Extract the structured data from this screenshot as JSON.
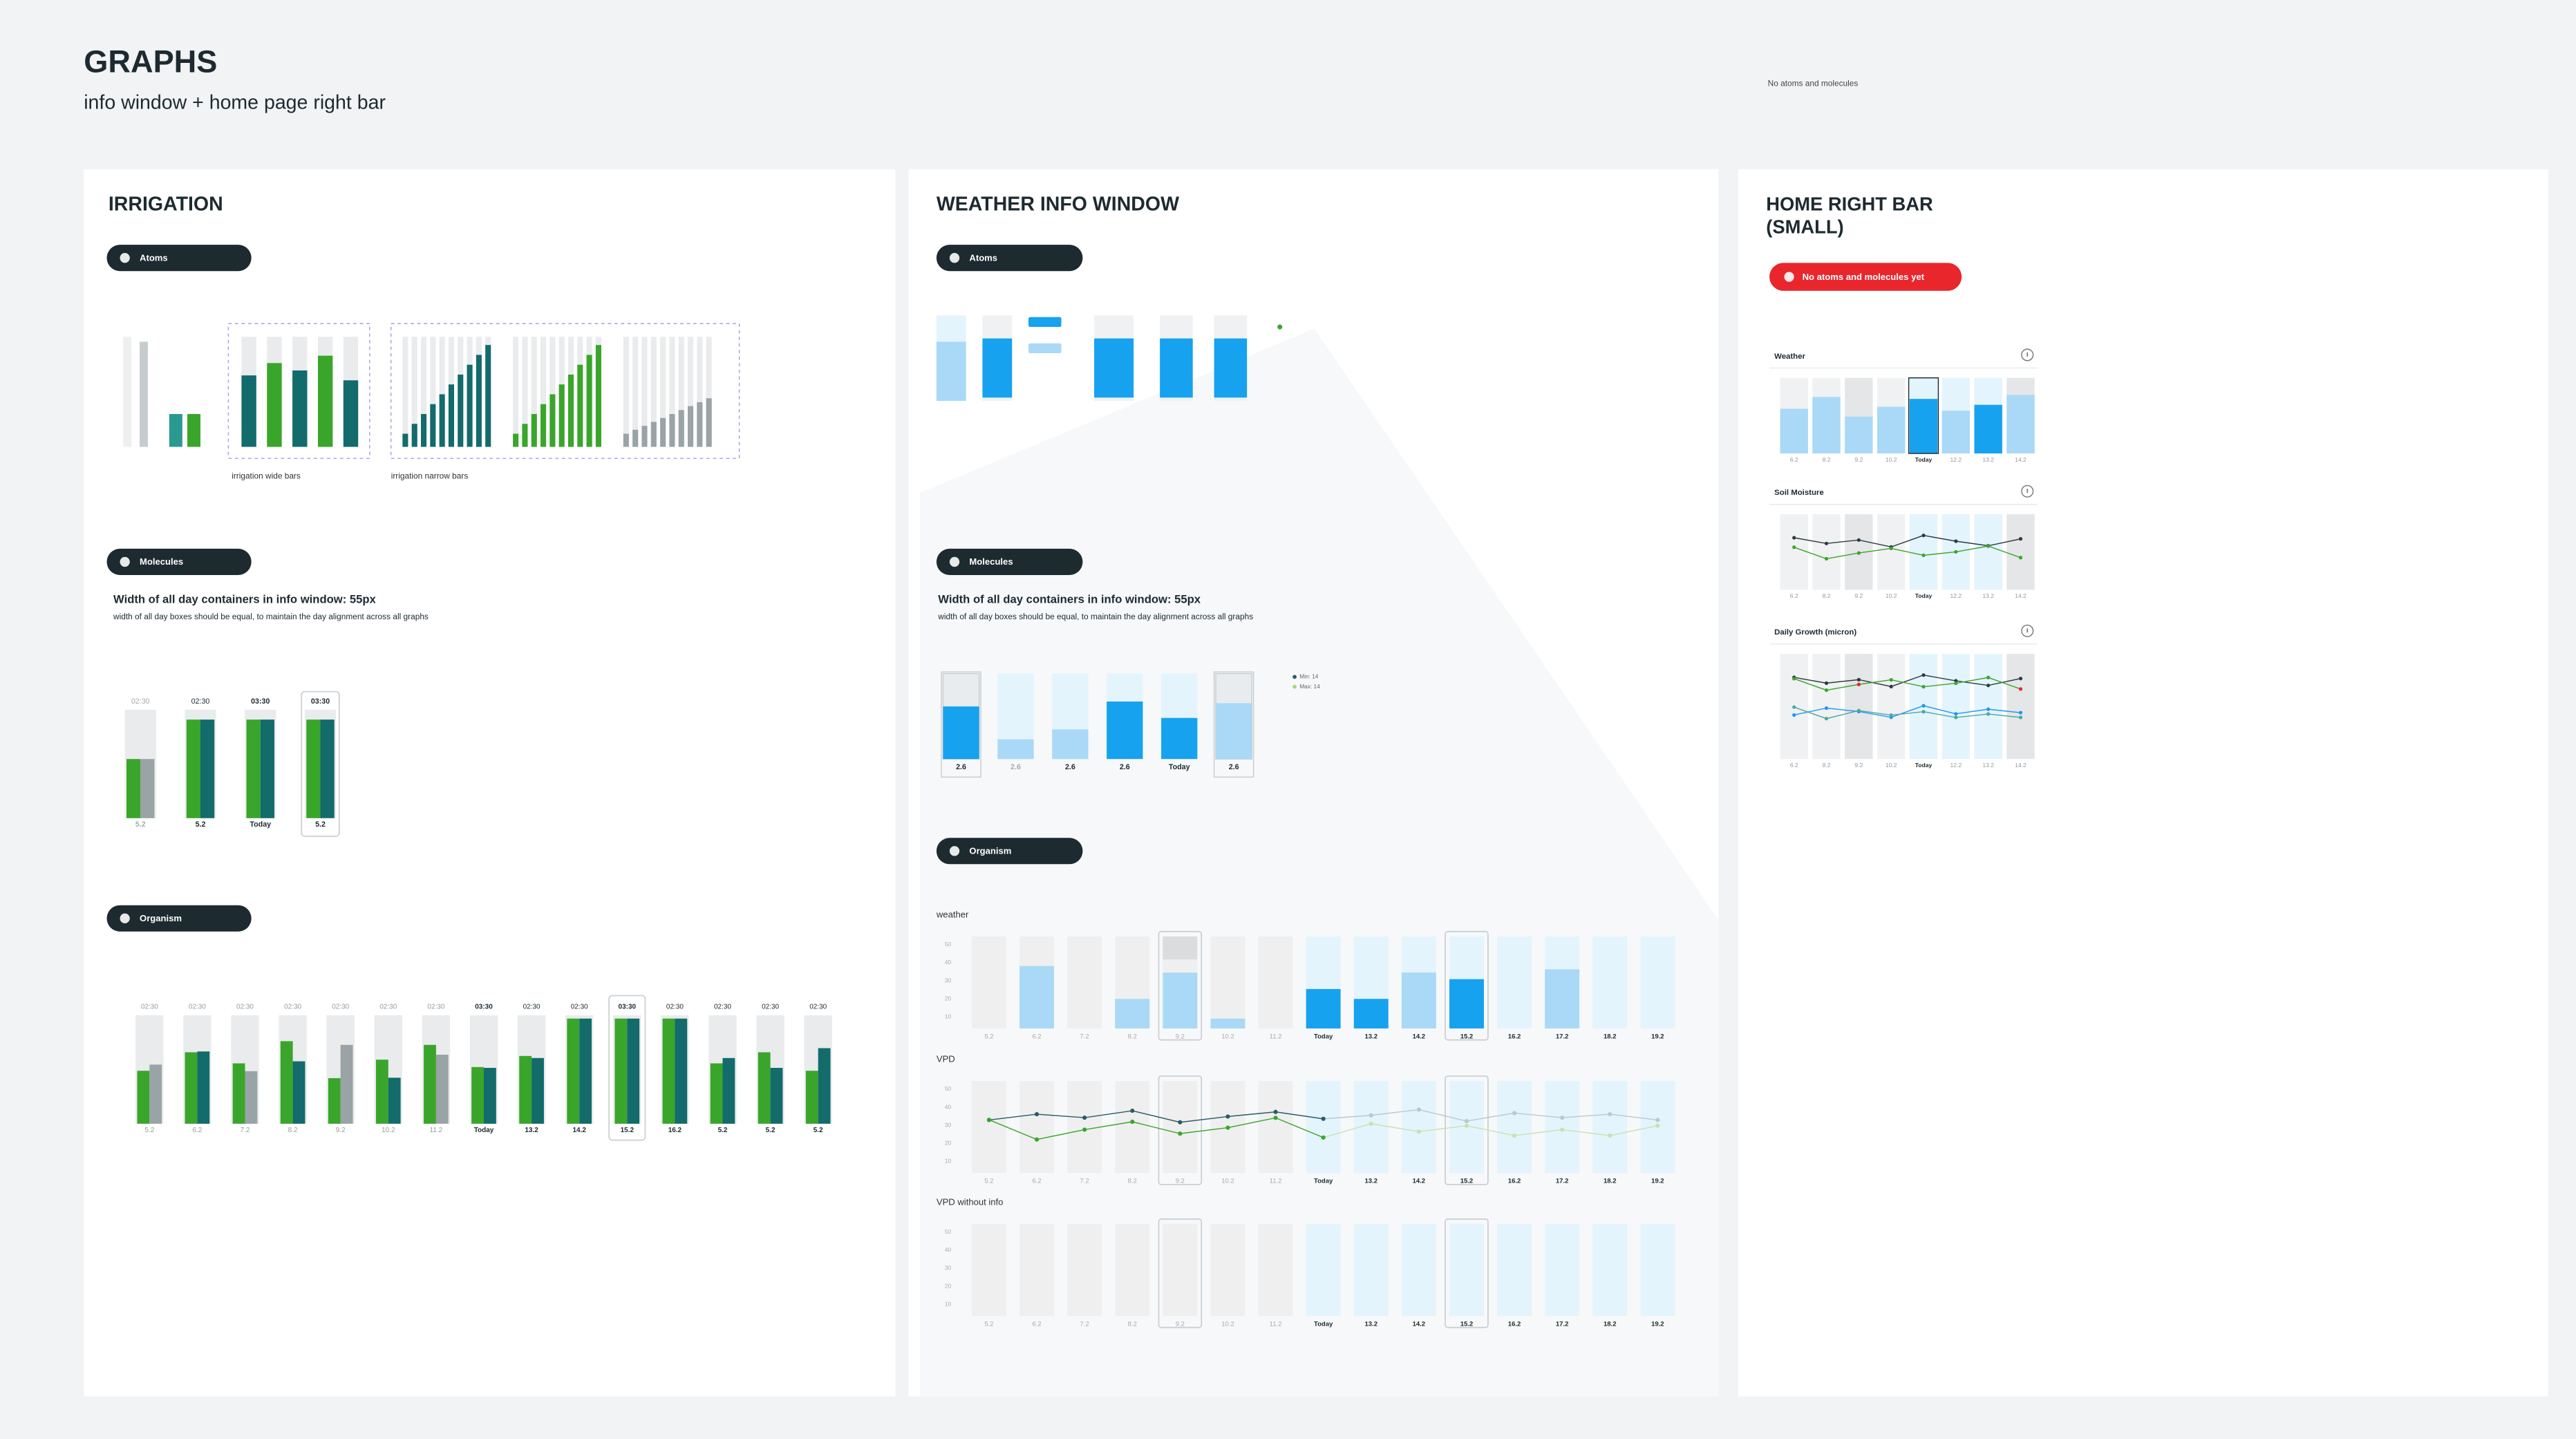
{
  "header": {
    "title": "GRAPHS",
    "subtitle": "info window + home page right bar",
    "note": "No atoms and molecules"
  },
  "irrigation": {
    "title": "IRRIGATION",
    "atoms": "Atoms",
    "captions": [
      "irrigation wide bars",
      "irrigation narrow bars"
    ],
    "molecules": "Molecules",
    "heading": "Width of all day containers in info window: 55px",
    "text": "width of all day boxes should be equal, to maintain the day alignment across all graphs",
    "molecule_times": [
      "02:30",
      "02:30",
      "03:30",
      "03:30"
    ],
    "molecule_days": [
      "5.2",
      "5.2",
      "Today",
      "5.2"
    ],
    "organism": "Organism",
    "organism_times": [
      "02:30",
      "02:30",
      "02:30",
      "02:30",
      "02:30",
      "02:30",
      "02:30",
      "03:30",
      "02:30",
      "02:30",
      "03:30",
      "02:30",
      "02:30",
      "02:30",
      "02:30"
    ],
    "organism_days": [
      "5.2",
      "6.2",
      "7.2",
      "8.2",
      "9.2",
      "10.2",
      "11.2",
      "Today",
      "13.2",
      "14.2",
      "15.2",
      "16.2",
      "5.2",
      "5.2",
      "5.2"
    ]
  },
  "weather": {
    "title": "WEATHER INFO WINDOW",
    "atoms": "Atoms",
    "molecules": "Molecules",
    "heading": "Width of all day containers in info window: 55px",
    "text": "width of all day boxes should be equal, to maintain the day alignment across all graphs",
    "molecule_days": [
      "2.6",
      "2.6",
      "2.6",
      "2.6",
      "Today",
      "2.6"
    ],
    "legend": [
      "Min: 14",
      "Max: 14"
    ],
    "organism": "Organism",
    "sections": [
      "weather",
      "VPD",
      "VPD without info"
    ],
    "yticks": [
      "50",
      "40",
      "30",
      "20",
      "10"
    ],
    "days": [
      "5.2",
      "6.2",
      "7.2",
      "8.2",
      "9.2",
      "10.2",
      "11.2",
      "Today",
      "13.2",
      "14.2",
      "15.2",
      "16.2",
      "17.2",
      "18.2",
      "19.2"
    ]
  },
  "home": {
    "title": "HOME RIGHT BAR (SMALL)",
    "badge": "No atoms and molecules yet",
    "charts": [
      "Weather",
      "Soil Moisture",
      "Daily Growth (micron)"
    ],
    "days": [
      "6.2",
      "8.2",
      "9.2",
      "10.2",
      "Today",
      "12.2",
      "13.2",
      "14.2"
    ]
  }
}
